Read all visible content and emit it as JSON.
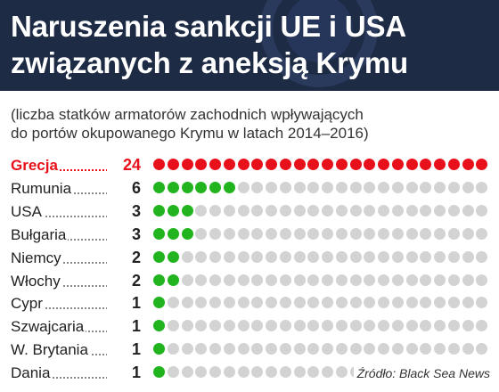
{
  "title": {
    "line1": "Naruszenia sankcji UE i USA",
    "line2": "związanych z aneksją Krymu"
  },
  "subtitle": {
    "line1": "(liczba statków armatorów zachodnich wpływających",
    "line2": "do portów okupowanego Krymu w latach 2014–2016)"
  },
  "source": "Źródło: Black Sea News",
  "colors": {
    "highlight": "#e8101a",
    "filled": "#22b41e",
    "empty": "#d3d3d3",
    "header_bg": "#1e2b45"
  },
  "chart_data": {
    "type": "bar",
    "max_dots": 24,
    "categories": [
      "Grecja",
      "Rumunia",
      "USA",
      "Bułgaria",
      "Niemcy",
      "Włochy",
      "Cypr",
      "Szwajcaria",
      "W. Brytania",
      "Dania"
    ],
    "values": [
      24,
      6,
      3,
      3,
      2,
      2,
      1,
      1,
      1,
      1
    ],
    "highlighted": [
      "Grecja"
    ]
  }
}
